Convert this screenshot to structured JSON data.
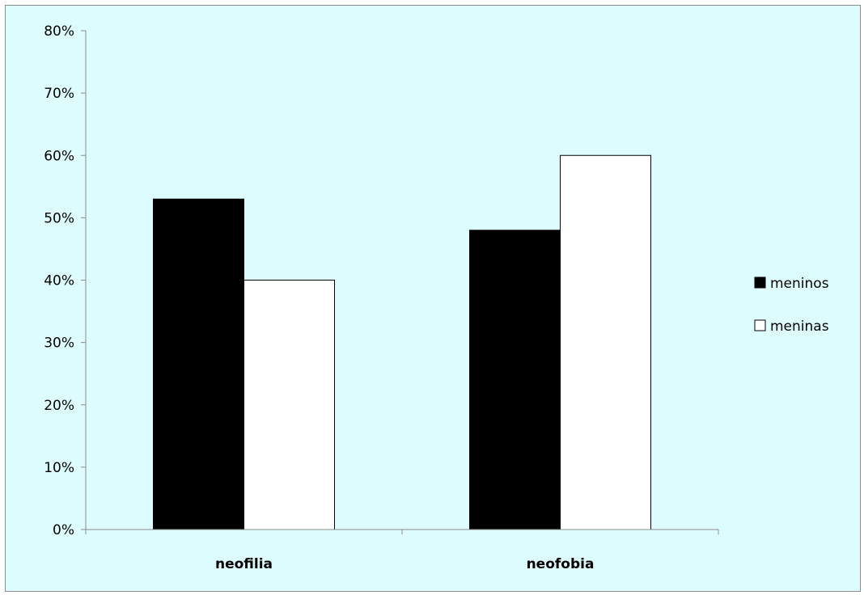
{
  "chart_data": {
    "type": "bar",
    "categories": [
      "neofilia",
      "neofobia"
    ],
    "series": [
      {
        "name": "meninos",
        "values": [
          0.53,
          0.48
        ],
        "color": "#000000"
      },
      {
        "name": "meninas",
        "values": [
          0.4,
          0.6
        ],
        "color": "#ffffff"
      }
    ],
    "y_ticks": [
      "0%",
      "10%",
      "20%",
      "30%",
      "40%",
      "50%",
      "60%",
      "70%",
      "80%"
    ],
    "ylim": [
      0,
      0.8
    ],
    "y_format": "percent",
    "grid": false,
    "legend_position": "right",
    "background_color": "#ddfcfe",
    "title": "",
    "xlabel": "",
    "ylabel": ""
  }
}
